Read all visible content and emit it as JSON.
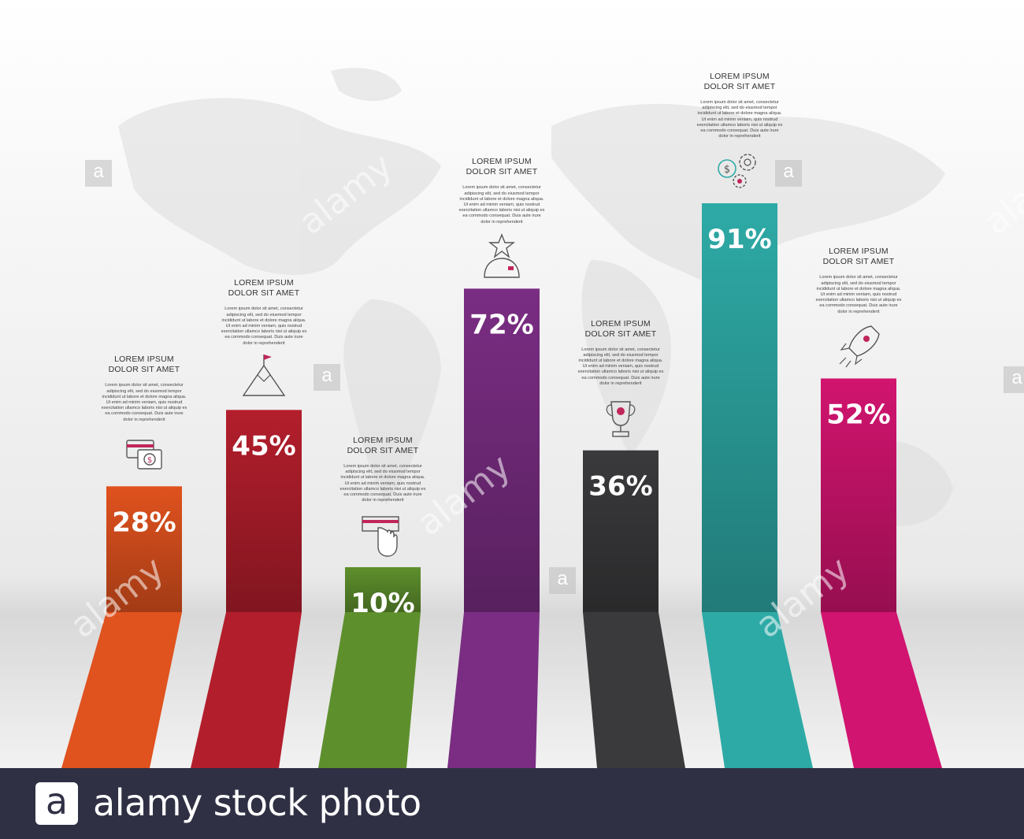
{
  "chart_data": {
    "type": "bar",
    "title": "",
    "xlabel": "",
    "ylabel": "",
    "ylim": [
      0,
      100
    ],
    "grid": false,
    "bars": [
      {
        "value": 28,
        "label": "28%",
        "color": "#e0521e",
        "title_line1": "LOREM IPSUM",
        "title_line2": "DOLOR SIT AMET",
        "icon": "credit-card-dollar-icon"
      },
      {
        "value": 45,
        "label": "45%",
        "color": "#b31e2c",
        "title_line1": "LOREM IPSUM",
        "title_line2": "DOLOR SIT AMET",
        "icon": "mountain-flag-icon"
      },
      {
        "value": 10,
        "label": "10%",
        "color": "#5e8f2d",
        "title_line1": "LOREM IPSUM",
        "title_line2": "DOLOR SIT AMET",
        "icon": "hand-money-icon"
      },
      {
        "value": 72,
        "label": "72%",
        "color": "#7a2d83",
        "title_line1": "LOREM IPSUM",
        "title_line2": "DOLOR SIT AMET",
        "icon": "star-person-icon"
      },
      {
        "value": 36,
        "label": "36%",
        "color": "#3a3a3c",
        "title_line1": "LOREM IPSUM",
        "title_line2": "DOLOR SIT AMET",
        "icon": "trophy-icon"
      },
      {
        "value": 91,
        "label": "91%",
        "color": "#2eaaa6",
        "title_line1": "LOREM IPSUM",
        "title_line2": "DOLOR SIT AMET",
        "icon": "gears-dollar-icon"
      },
      {
        "value": 52,
        "label": "52%",
        "color": "#d1146f",
        "title_line1": "LOREM IPSUM",
        "title_line2": "DOLOR SIT AMET",
        "icon": "rocket-icon"
      }
    ]
  },
  "body_text": "Lorem ipsum dolor sit amet, consectetur adipiscing elit, sed do eiusmod tempor incididunt ut labore et dolore magna aliqua. Ut enim ad minim veniam, quis nostrud exercitation ullamco laboris nisi ut aliquip ex ea commodo consequat. Duis aute irure dolor in reprehenderit",
  "watermark": {
    "small_letter": "a",
    "diagonal_text": "alamy",
    "footer_text": "alamy stock photo"
  },
  "colors": {
    "background": "#f4f4f4",
    "footer": "#2f3044",
    "icon_stroke": "#555555",
    "icon_accent": "#c0265a"
  }
}
